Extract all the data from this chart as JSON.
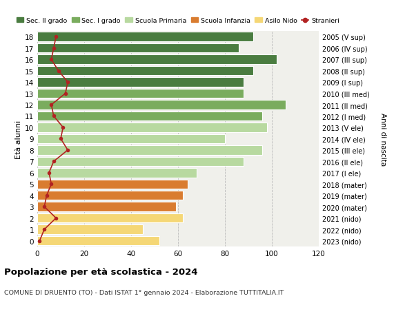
{
  "ages": [
    18,
    17,
    16,
    15,
    14,
    13,
    12,
    11,
    10,
    9,
    8,
    7,
    6,
    5,
    4,
    3,
    2,
    1,
    0
  ],
  "right_labels": [
    "2005 (V sup)",
    "2006 (IV sup)",
    "2007 (III sup)",
    "2008 (II sup)",
    "2009 (I sup)",
    "2010 (III med)",
    "2011 (II med)",
    "2012 (I med)",
    "2013 (V ele)",
    "2014 (IV ele)",
    "2015 (III ele)",
    "2016 (II ele)",
    "2017 (I ele)",
    "2018 (mater)",
    "2019 (mater)",
    "2020 (mater)",
    "2021 (nido)",
    "2022 (nido)",
    "2023 (nido)"
  ],
  "bar_values": [
    92,
    86,
    102,
    92,
    88,
    88,
    106,
    96,
    98,
    80,
    96,
    88,
    68,
    64,
    62,
    59,
    62,
    45,
    52
  ],
  "stranieri_values": [
    8,
    7,
    6,
    9,
    13,
    12,
    6,
    7,
    11,
    10,
    13,
    7,
    5,
    6,
    4,
    3,
    8,
    3,
    1
  ],
  "bar_colors": [
    "#4a7c40",
    "#4a7c40",
    "#4a7c40",
    "#4a7c40",
    "#4a7c40",
    "#7aac5e",
    "#7aac5e",
    "#7aac5e",
    "#b8d9a0",
    "#b8d9a0",
    "#b8d9a0",
    "#b8d9a0",
    "#b8d9a0",
    "#d97c30",
    "#d97c30",
    "#d97c30",
    "#f5d776",
    "#f5d776",
    "#f5d776"
  ],
  "legend_labels": [
    "Sec. II grado",
    "Sec. I grado",
    "Scuola Primaria",
    "Scuola Infanzia",
    "Asilo Nido",
    "Stranieri"
  ],
  "legend_colors": [
    "#4a7c40",
    "#7aac5e",
    "#b8d9a0",
    "#d97c30",
    "#f5d776",
    "#b22222"
  ],
  "stranieri_color": "#b22222",
  "title": "Popolazione per età scolastica - 2024",
  "subtitle": "COMUNE DI DRUENTO (TO) - Dati ISTAT 1° gennaio 2024 - Elaborazione TUTTITALIA.IT",
  "ylabel": "Età alunni",
  "right_ylabel": "Anni di nascita",
  "xlim": [
    0,
    120
  ],
  "xticks": [
    0,
    20,
    40,
    60,
    80,
    100,
    120
  ],
  "background_color": "#ffffff",
  "bar_background": "#f0f0eb"
}
